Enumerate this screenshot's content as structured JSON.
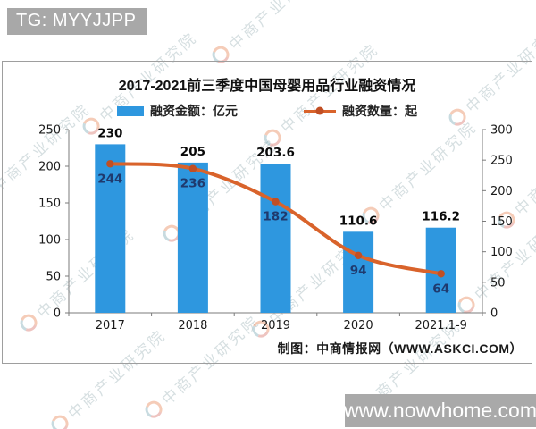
{
  "overlay": {
    "tg_badge": "TG: MYYJJPP",
    "site_badge": "www.nowvhome.com",
    "watermark_text": "中商产业研究院"
  },
  "chart_data": {
    "type": "bar+line combo",
    "title": "2017-2021前三季度中国母婴用品行业融资情况",
    "footnote": "制图：中商情报网（WWW.ASKCI.COM）",
    "categories": [
      "2017",
      "2018",
      "2019",
      "2020",
      "2021.1-9"
    ],
    "series": [
      {
        "name": "融资金额：亿元",
        "type": "bar",
        "axis": "left",
        "color": "#2E97DF",
        "label_color": "#0a0a0a",
        "values": [
          230,
          205,
          203.6,
          110.6,
          116.2
        ],
        "value_labels": [
          "230",
          "205",
          "203.6",
          "110.6",
          "116.2"
        ]
      },
      {
        "name": "融资数量：起",
        "type": "line",
        "axis": "right",
        "color": "#D9632B",
        "marker_color": "#C14F24",
        "label_color": "#1F3A6E",
        "values": [
          244,
          236,
          182,
          94,
          64
        ],
        "value_labels": [
          "244",
          "236",
          "182",
          "94",
          "64"
        ]
      }
    ],
    "left_axis": {
      "min": 0,
      "max": 250,
      "step": 50
    },
    "right_axis": {
      "min": 0,
      "max": 300,
      "step": 50
    },
    "grid": false,
    "legend_position": "top"
  }
}
